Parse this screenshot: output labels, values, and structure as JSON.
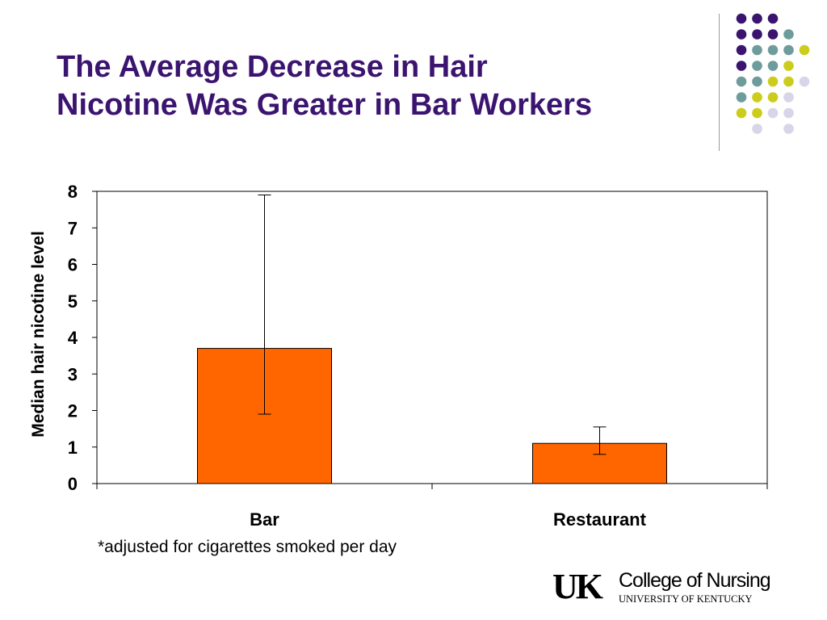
{
  "slide": {
    "title_lines": [
      "The Average Decrease in Hair",
      "Nicotine Was Greater in Bar Workers"
    ],
    "footnote": "*adjusted for cigarettes smoked per day",
    "logo": {
      "mark": "UK",
      "line1": "College of Nursing",
      "line2": "UNIVERSITY OF KENTUCKY"
    }
  },
  "decoration": {
    "dot_colors": {
      "purple": "#3b1470",
      "teal": "#6e9c9c",
      "lime": "#cccc1c",
      "lavender": "#d6d6e8"
    },
    "dot_rows": [
      [
        "purple",
        "purple",
        "purple",
        null,
        null
      ],
      [
        "purple",
        "purple",
        "purple",
        "teal",
        null
      ],
      [
        "purple",
        "teal",
        "teal",
        "teal",
        "lime"
      ],
      [
        "purple",
        "teal",
        "teal",
        "lime",
        null
      ],
      [
        "teal",
        "teal",
        "lime",
        "lime",
        "lavender"
      ],
      [
        "teal",
        "lime",
        "lime",
        "lavender",
        null
      ],
      [
        "lime",
        "lime",
        "lavender",
        "lavender",
        null
      ],
      [
        null,
        "lavender",
        null,
        "lavender",
        null
      ]
    ]
  },
  "chart_data": {
    "type": "bar",
    "title": "",
    "xlabel": "",
    "ylabel": "Median hair nicotine level",
    "categories": [
      "Bar",
      "Restaurant"
    ],
    "values": [
      3.7,
      1.1
    ],
    "error_bars": [
      {
        "low": 1.9,
        "high": 7.9
      },
      {
        "low": 0.8,
        "high": 1.55
      }
    ],
    "ylim": [
      0,
      8
    ],
    "yticks": [
      0,
      1,
      2,
      3,
      4,
      5,
      6,
      7,
      8
    ],
    "bar_color": "#ff6600",
    "grid": false,
    "legend": "none"
  }
}
